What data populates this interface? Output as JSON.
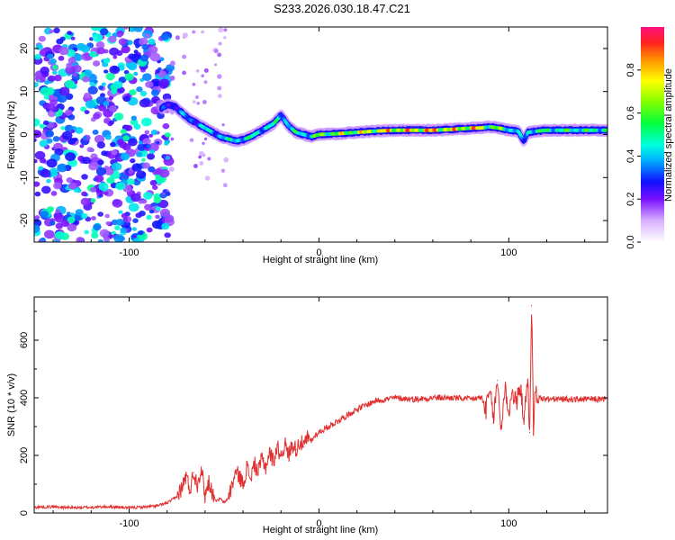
{
  "title": "S233.2026.030.18.47.C21",
  "colors": {
    "snr_line": "#e03030",
    "ridge_low": "#2010ff",
    "ridge_high": "#ff2040",
    "noise": "#8c3cff",
    "axis": "#000000"
  },
  "chart_data": [
    {
      "type": "heatmap",
      "panel": "spectrogram",
      "xlabel": "Height of straight line (km)",
      "ylabel": "Frequency (Hz)",
      "xlim": [
        -150,
        152
      ],
      "ylim": [
        -25,
        25
      ],
      "xticks": [
        -100,
        0,
        100
      ],
      "xtick_labels": [
        "-100",
        "0",
        "100"
      ],
      "yticks": [
        -20,
        -10,
        0,
        10,
        20
      ],
      "ytick_labels": [
        "-20",
        "-10",
        "0",
        "10",
        "20"
      ],
      "grid": false,
      "noise_region_x": [
        -150,
        -78
      ],
      "ridge": {
        "x": [
          -83,
          -80,
          -76,
          -72,
          -68,
          -64,
          -60,
          -56,
          -52,
          -48,
          -44,
          -40,
          -36,
          -32,
          -28,
          -24,
          -20,
          -16,
          -12,
          -8,
          -4,
          0,
          10,
          20,
          30,
          40,
          50,
          60,
          70,
          80,
          85,
          90,
          95,
          100,
          105,
          108,
          110,
          115,
          120,
          130,
          140,
          152
        ],
        "y": [
          6,
          7,
          6.5,
          5,
          3.5,
          2.5,
          1.5,
          0.5,
          -0.5,
          -1,
          -1.5,
          -1.2,
          -0.5,
          0.5,
          1.5,
          2.5,
          4.5,
          2,
          0.5,
          0,
          -0.5,
          0,
          0.2,
          0.5,
          0.8,
          1,
          1,
          1,
          1.2,
          1.5,
          1.5,
          1.8,
          1.5,
          1,
          0.8,
          -1.5,
          0.5,
          0.8,
          1,
          1,
          1,
          1
        ],
        "amplitude": [
          0.3,
          0.35,
          0.35,
          0.4,
          0.4,
          0.45,
          0.5,
          0.5,
          0.5,
          0.5,
          0.55,
          0.55,
          0.55,
          0.55,
          0.55,
          0.55,
          0.5,
          0.55,
          0.55,
          0.55,
          0.6,
          0.7,
          0.75,
          0.8,
          0.85,
          0.9,
          0.9,
          0.95,
          0.85,
          0.9,
          0.9,
          0.7,
          0.7,
          0.6,
          0.5,
          0.3,
          0.6,
          0.6,
          0.6,
          0.6,
          0.6,
          0.6
        ]
      },
      "colorbar": {
        "label": "Normalized spectral amplitude",
        "range": [
          0,
          1
        ],
        "ticks": [
          0.0,
          0.2,
          0.4,
          0.6,
          0.8
        ],
        "tick_labels": [
          "0.0",
          "0.2",
          "0.4",
          "0.6",
          "0.8"
        ]
      }
    },
    {
      "type": "line",
      "panel": "snr",
      "xlabel": "Height of straight line (km)",
      "ylabel": "SNR (10 * v/v)",
      "xlim": [
        -150,
        152
      ],
      "ylim": [
        0,
        750
      ],
      "xticks": [
        -100,
        0,
        100
      ],
      "xtick_labels": [
        "-100",
        "0",
        "100"
      ],
      "yticks": [
        0,
        200,
        400,
        600
      ],
      "ytick_labels": [
        "0",
        "200",
        "400",
        "600"
      ],
      "grid": false,
      "series": [
        {
          "name": "SNR",
          "x": [
            -150,
            -140,
            -130,
            -120,
            -110,
            -100,
            -90,
            -85,
            -80,
            -75,
            -72,
            -70,
            -68,
            -66,
            -64,
            -62,
            -60,
            -58,
            -56,
            -54,
            -52,
            -50,
            -48,
            -46,
            -44,
            -42,
            -40,
            -38,
            -36,
            -34,
            -32,
            -30,
            -28,
            -26,
            -24,
            -22,
            -20,
            -18,
            -16,
            -14,
            -12,
            -10,
            -8,
            -6,
            -4,
            -2,
            0,
            5,
            10,
            15,
            20,
            25,
            30,
            35,
            40,
            50,
            60,
            70,
            80,
            85,
            88,
            90,
            92,
            94,
            96,
            98,
            100,
            102,
            104,
            106,
            108,
            110,
            111,
            112,
            113,
            114,
            116,
            120,
            130,
            140,
            152
          ],
          "y": [
            20,
            22,
            18,
            20,
            22,
            18,
            22,
            25,
            35,
            55,
            90,
            130,
            80,
            140,
            100,
            160,
            60,
            110,
            70,
            40,
            50,
            35,
            50,
            90,
            140,
            130,
            100,
            160,
            120,
            170,
            140,
            190,
            160,
            210,
            180,
            230,
            200,
            240,
            200,
            240,
            220,
            250,
            230,
            260,
            250,
            270,
            280,
            300,
            320,
            340,
            360,
            375,
            390,
            395,
            400,
            395,
            400,
            400,
            395,
            400,
            360,
            420,
            330,
            460,
            290,
            440,
            350,
            420,
            380,
            440,
            330,
            450,
            280,
            720,
            300,
            420,
            400,
            395,
            395,
            395,
            395
          ]
        }
      ]
    }
  ]
}
